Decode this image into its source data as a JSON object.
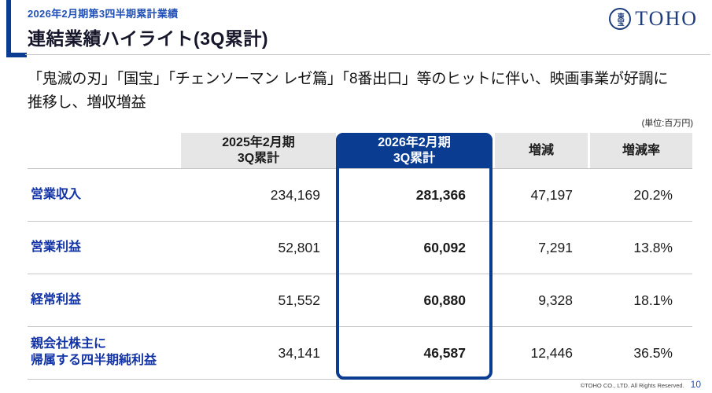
{
  "header": {
    "eyebrow": "2026年2月期第3四半期累計業績",
    "title": "連結業績ハイライト(3Q累計)",
    "logo": {
      "emblem": "東宝",
      "wordmark": "TOHO"
    }
  },
  "lead": {
    "text": "「鬼滅の刃」「国宝」「チェンソーマン レゼ篇」「8番出口」等のヒットに伴い、映画事業が好調に\n推移し、増収増益"
  },
  "table": {
    "unit_note": "(単位:百万円)",
    "columns": {
      "prev": "2025年2月期\n3Q累計",
      "current": "2026年2月期\n3Q累計",
      "change": "増減",
      "change_rate": "増減率"
    },
    "rows": [
      {
        "label": "営業収入",
        "prev": "234,169",
        "current": "281,366",
        "change": "47,197",
        "change_rate": "20.2%"
      },
      {
        "label": "営業利益",
        "prev": "52,801",
        "current": "60,092",
        "change": "7,291",
        "change_rate": "13.8%"
      },
      {
        "label": "経常利益",
        "prev": "51,552",
        "current": "60,880",
        "change": "9,328",
        "change_rate": "18.1%"
      },
      {
        "label": "親会社株主に\n帰属する四半期純利益",
        "prev": "34,141",
        "current": "46,587",
        "change": "12,446",
        "change_rate": "36.5%"
      }
    ]
  },
  "footer": {
    "copyright": "©TOHO CO., LTD. All Rights Reserved.",
    "page_number": "10"
  },
  "colors": {
    "brand_navy": "#0a3c92",
    "accent_blue": "#2151b8",
    "label_blue": "#1233a6",
    "header_cell_gray": "#e6e6e6"
  }
}
